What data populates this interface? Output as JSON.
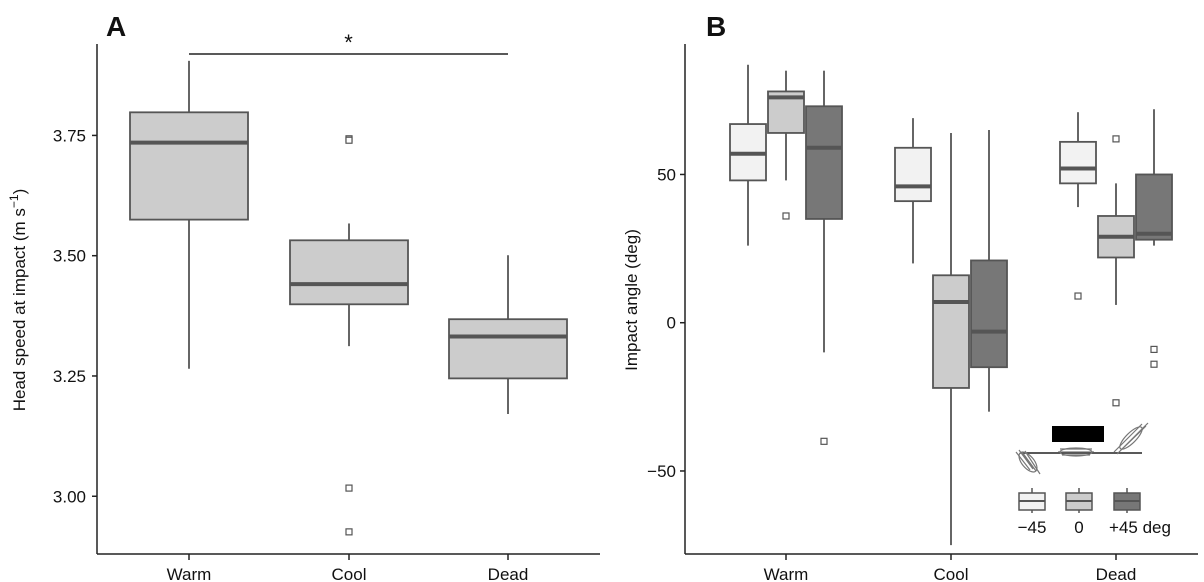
{
  "colors": {
    "box_light": "#f2f2f2",
    "box_mid": "#cccccc",
    "box_dark": "#777777",
    "stroke": "#555555",
    "axis": "#222222"
  },
  "chart_data": [
    {
      "type": "box",
      "panel_label": "A",
      "title": "",
      "xlabel": "",
      "ylabel": "Head speed at impact (m s",
      "ylabel_superscript": "−1",
      "ylabel_close": ")",
      "ylim": [
        2.88,
        3.94
      ],
      "yticks": [
        3.0,
        3.25,
        3.5,
        3.75
      ],
      "ytick_labels": [
        "3.00",
        "3.25",
        "3.50",
        "3.75"
      ],
      "categories": [
        "Warm",
        "Cool",
        "Dead"
      ],
      "boxes": [
        {
          "category": "Warm",
          "whisker_low": 3.265,
          "q1": 3.575,
          "median": 3.735,
          "q3": 3.798,
          "whisker_high": 3.905,
          "outliers": []
        },
        {
          "category": "Cool",
          "whisker_low": 3.312,
          "q1": 3.399,
          "median": 3.441,
          "q3": 3.532,
          "whisker_high": 3.567,
          "outliers": [
            3.743,
            3.74,
            3.017,
            2.926
          ]
        },
        {
          "category": "Dead",
          "whisker_low": 3.171,
          "q1": 3.245,
          "median": 3.332,
          "q3": 3.368,
          "whisker_high": 3.501,
          "outliers": []
        }
      ],
      "annotations": [
        {
          "text": "*",
          "from": "Warm",
          "to": "Dead"
        }
      ],
      "grid": false
    },
    {
      "type": "box",
      "panel_label": "B",
      "title": "",
      "xlabel": "",
      "ylabel": "Impact angle (deg)",
      "ylim": [
        -78,
        94
      ],
      "yticks": [
        -50,
        0,
        50
      ],
      "ytick_labels": [
        "−50",
        "0",
        "50"
      ],
      "categories": [
        "Warm",
        "Cool",
        "Dead"
      ],
      "series": [
        {
          "name": "−45",
          "color": "#f2f2f2",
          "boxes": [
            {
              "whisker_low": 26,
              "q1": 48,
              "median": 57,
              "q3": 67,
              "whisker_high": 87,
              "outliers": []
            },
            {
              "whisker_low": 20,
              "q1": 41,
              "median": 46,
              "q3": 59,
              "whisker_high": 69,
              "outliers": []
            },
            {
              "whisker_low": 39,
              "q1": 47,
              "median": 52,
              "q3": 61,
              "whisker_high": 71,
              "outliers": [
                9
              ]
            }
          ]
        },
        {
          "name": "0",
          "color": "#cccccc",
          "boxes": [
            {
              "whisker_low": 48,
              "q1": 64,
              "median": 76,
              "q3": 78,
              "whisker_high": 85,
              "outliers": [
                36
              ]
            },
            {
              "whisker_low": -75,
              "q1": -22,
              "median": 7,
              "q3": 16,
              "whisker_high": 64,
              "outliers": []
            },
            {
              "whisker_low": 6,
              "q1": 22,
              "median": 29,
              "q3": 36,
              "whisker_high": 47,
              "outliers": [
                62,
                -27
              ]
            }
          ]
        },
        {
          "name": "+45 deg",
          "color": "#777777",
          "boxes": [
            {
              "whisker_low": -10,
              "q1": 35,
              "median": 59,
              "q3": 73,
              "whisker_high": 85,
              "outliers": [
                -40
              ]
            },
            {
              "whisker_low": -30,
              "q1": -15,
              "median": -3,
              "q3": 21,
              "whisker_high": 65,
              "outliers": []
            },
            {
              "whisker_low": 26,
              "q1": 28,
              "median": 30,
              "q3": 50,
              "whisker_high": 72,
              "outliers": [
                -9,
                -14
              ]
            }
          ]
        }
      ],
      "legend": {
        "placement": "bottom-right",
        "labels": [
          "−45",
          "0",
          "+45 deg"
        ]
      },
      "grid": false
    }
  ]
}
